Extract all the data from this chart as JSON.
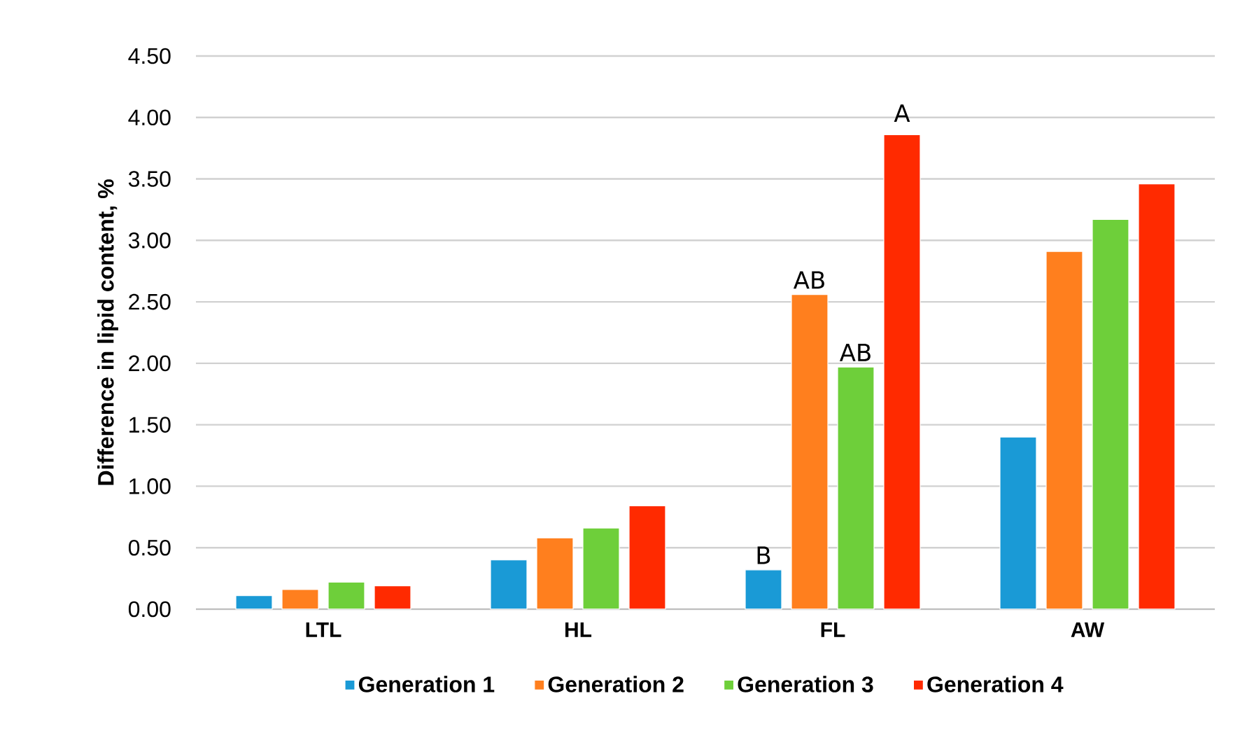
{
  "chart_data": {
    "type": "bar",
    "ylabel": "Difference in lipid content, %",
    "categories": [
      "LTL",
      "HL",
      "FL",
      "AW"
    ],
    "series": [
      {
        "name": "Generation 1",
        "color": "#1a9ad6",
        "values": [
          0.11,
          0.4,
          0.32,
          1.4
        ]
      },
      {
        "name": "Generation 2",
        "color": "#ff7f1e",
        "values": [
          0.16,
          0.58,
          2.56,
          2.91
        ]
      },
      {
        "name": "Generation 3",
        "color": "#6ecf3a",
        "values": [
          0.22,
          0.66,
          1.97,
          3.17
        ]
      },
      {
        "name": "Generation 4",
        "color": "#ff2a00",
        "values": [
          0.19,
          0.84,
          3.86,
          3.46
        ]
      }
    ],
    "ylim": [
      0,
      4.5
    ],
    "yticks": [
      {
        "value": 0,
        "label": "0.00"
      },
      {
        "value": 0.5,
        "label": "0.50"
      },
      {
        "value": 1,
        "label": "1.00"
      },
      {
        "value": 1.5,
        "label": "1.50"
      },
      {
        "value": 2,
        "label": "2.00"
      },
      {
        "value": 2.5,
        "label": "2.50"
      },
      {
        "value": 3,
        "label": "3.00"
      },
      {
        "value": 3.5,
        "label": "3.50"
      },
      {
        "value": 4,
        "label": "4.00"
      },
      {
        "value": 4.5,
        "label": "4.50"
      }
    ],
    "grid": "y",
    "legend": "bottom",
    "annotations": [
      {
        "text": "B",
        "x": "FL",
        "y": 0.32
      },
      {
        "text": "AB",
        "x": "FL",
        "y": 2.56
      },
      {
        "text": "AB",
        "x": "FL",
        "y": 1.97
      },
      "A"
    ]
  }
}
